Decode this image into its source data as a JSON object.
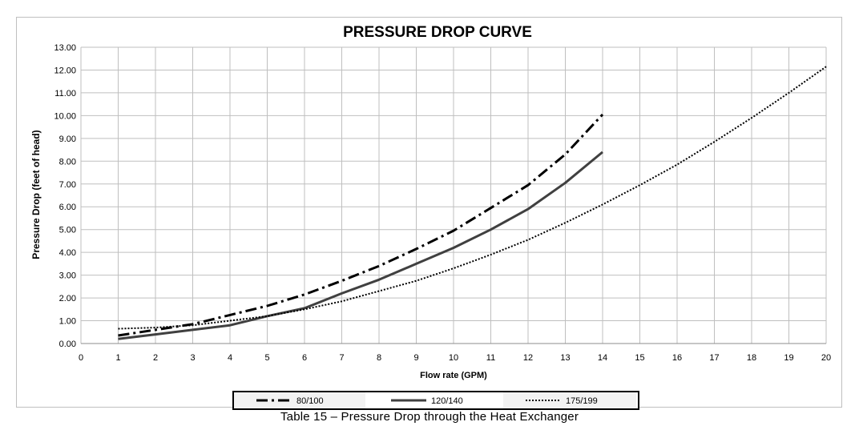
{
  "caption": "Table 15 – Pressure Drop through the Heat Exchanger",
  "chart_data": {
    "type": "line",
    "title": "PRESSURE DROP CURVE",
    "xlabel": "Flow rate (GPM)",
    "ylabel": "Pressure Drop (feet of head)",
    "xlim": [
      0,
      20
    ],
    "ylim": [
      0,
      13
    ],
    "x_ticks": [
      "0",
      "1",
      "2",
      "3",
      "4",
      "5",
      "6",
      "7",
      "8",
      "9",
      "10",
      "11",
      "12",
      "13",
      "14",
      "15",
      "16",
      "17",
      "18",
      "19",
      "20"
    ],
    "y_ticks": [
      "0.00",
      "1.00",
      "2.00",
      "3.00",
      "4.00",
      "5.00",
      "6.00",
      "7.00",
      "8.00",
      "9.00",
      "10.00",
      "11.00",
      "12.00",
      "13.00"
    ],
    "grid": true,
    "legend_position": "bottom",
    "series": [
      {
        "name": "80/100",
        "style": "dash-dot",
        "color": "#000000",
        "x": [
          1,
          2,
          3,
          4,
          5,
          6,
          7,
          8,
          9,
          10,
          11,
          12,
          13,
          14
        ],
        "y": [
          0.35,
          0.6,
          0.85,
          1.25,
          1.65,
          2.15,
          2.75,
          3.4,
          4.15,
          4.95,
          5.95,
          6.95,
          8.3,
          10.05
        ]
      },
      {
        "name": "120/140",
        "style": "solid",
        "color": "#404040",
        "x": [
          1,
          2,
          3,
          4,
          5,
          6,
          7,
          8,
          9,
          10,
          11,
          12,
          13,
          14
        ],
        "y": [
          0.2,
          0.4,
          0.6,
          0.8,
          1.2,
          1.55,
          2.2,
          2.8,
          3.5,
          4.2,
          5.0,
          5.9,
          7.05,
          8.4
        ]
      },
      {
        "name": "175/199",
        "style": "dotted",
        "color": "#000000",
        "x": [
          1,
          2,
          3,
          4,
          5,
          6,
          7,
          8,
          9,
          10,
          11,
          12,
          13,
          14,
          15,
          16,
          17,
          18,
          19,
          20
        ],
        "y": [
          0.65,
          0.7,
          0.8,
          1.0,
          1.2,
          1.5,
          1.85,
          2.3,
          2.75,
          3.3,
          3.9,
          4.55,
          5.3,
          6.1,
          6.95,
          7.85,
          8.85,
          9.9,
          11.0,
          12.15
        ]
      }
    ]
  }
}
